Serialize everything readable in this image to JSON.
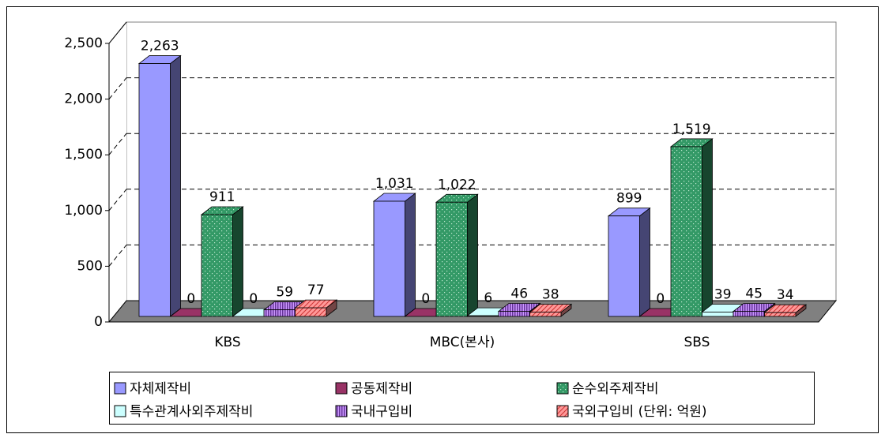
{
  "chart_data": {
    "type": "bar3d",
    "categories": [
      "KBS",
      "MBC(본사)",
      "SBS"
    ],
    "series": [
      {
        "name": "자체제작비",
        "color": "#9999ff",
        "pattern": "solid",
        "values": [
          2263,
          1031,
          899
        ],
        "value_labels": [
          "2,263",
          "1,031",
          "899"
        ]
      },
      {
        "name": "공동제작비",
        "color": "#993366",
        "pattern": "solid",
        "values": [
          0,
          0,
          0
        ]
      },
      {
        "name": "순수외주제작비",
        "color": "#339966",
        "pattern": "dots",
        "values": [
          911,
          1022,
          1519
        ],
        "value_labels": [
          "911",
          "1,022",
          "1,519"
        ]
      },
      {
        "name": "특수관계사외주제작비",
        "color": "#ccffff",
        "pattern": "solid",
        "values": [
          0,
          6,
          39
        ]
      },
      {
        "name": "국내구입비",
        "color": "#cc99ff",
        "pattern": "vstripes",
        "values": [
          59,
          46,
          45
        ]
      },
      {
        "name": "국외구입비 (단위: 억원)",
        "color": "#ff9999",
        "pattern": "hatch",
        "values": [
          77,
          38,
          34
        ]
      }
    ],
    "ylim": [
      0,
      2500
    ],
    "yticks": [
      0,
      500,
      {
        "value": 1000,
        "label": "1,000"
      },
      {
        "value": 1500,
        "label": "1,500"
      },
      {
        "value": 2000,
        "label": "2,000"
      },
      {
        "value": 2500,
        "label": "2,500"
      }
    ],
    "grid": true,
    "legend": "bottom"
  }
}
